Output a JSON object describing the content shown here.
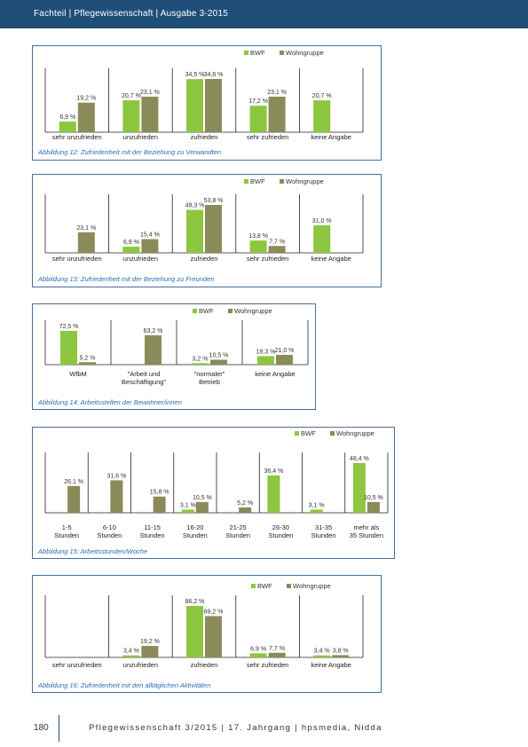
{
  "header": {
    "text": "Fachteil | Pflegewissenschaft | Ausgabe 3-2015"
  },
  "colors": {
    "bwf": "#8dc63f",
    "wohngruppe": "#8b8b5a",
    "frame": "#4a6f9a",
    "header": "#1f4e79",
    "caption": "#2b6cb0"
  },
  "chart_data": [
    {
      "type": "bar",
      "caption": "Abbildung 12: Zufriedenheit mit der Beziehung zu Verwandten",
      "categories": [
        "sehr unzufrieden",
        "unzufrieden",
        "zufrieden",
        "sehr zufrieden",
        "keine Angabe"
      ],
      "series": [
        {
          "name": "BWF",
          "values": [
            6.9,
            20.7,
            34.5,
            17.2,
            20.7
          ],
          "labels": [
            "6,9 %",
            "20,7 %",
            "34,5 %",
            "17,2 %",
            "20,7 %"
          ]
        },
        {
          "name": "Wohngruppe",
          "values": [
            19.2,
            23.1,
            34.6,
            23.1,
            null
          ],
          "labels": [
            "19,2 %",
            "23,1 %",
            "34,6 %",
            "23,1 %",
            ""
          ]
        }
      ]
    },
    {
      "type": "bar",
      "caption": "Abbildung 13: Zufriedenheit mit der Beziehung zu Freunden",
      "categories": [
        "sehr unzufrieden",
        "unzufrieden",
        "zufrieden",
        "sehr zufrieden",
        "keine Angabe"
      ],
      "series": [
        {
          "name": "BWF",
          "values": [
            null,
            6.9,
            48.3,
            13.8,
            31.0
          ],
          "labels": [
            "",
            "6,9 %",
            "48,3 %",
            "13,8 %",
            "31,0 %"
          ]
        },
        {
          "name": "Wohngruppe",
          "values": [
            23.1,
            15.4,
            53.8,
            7.7,
            null
          ],
          "labels": [
            "23,1 %",
            "15,4 %",
            "53,8 %",
            "7,7 %",
            ""
          ]
        }
      ]
    },
    {
      "type": "bar",
      "caption": "Abbildung 14: Arbeitsstellen der Bewohner/innen",
      "categories": [
        "WfbM",
        "\"Arbeit und Beschäftigung\"",
        "\"normaler\" Betrieb",
        "keine Angabe"
      ],
      "category_lines": [
        [
          "WfbM"
        ],
        [
          "\"Arbeit und",
          "Beschäftigung\""
        ],
        [
          "\"normaler\"",
          "Betrieb"
        ],
        [
          "keine Angabe"
        ]
      ],
      "series": [
        {
          "name": "BWF",
          "values": [
            72.5,
            null,
            3.2,
            18.3
          ],
          "labels": [
            "72,5 %",
            "",
            "3,2 %",
            "18,3 %"
          ]
        },
        {
          "name": "Wohngruppe",
          "values": [
            5.2,
            63.2,
            10.5,
            21.0
          ],
          "labels": [
            "5,2 %",
            "63,2 %",
            "10,5 %",
            "21,0 %"
          ]
        }
      ]
    },
    {
      "type": "bar",
      "caption": "Abbildung 15: Arbeitsstunden/Woche",
      "categories": [
        "1-5 Stunden",
        "6-10 Stunden",
        "11-15 Stunden",
        "16-20 Stunden",
        "21-25 Stunden",
        "26-30 Stunden",
        "31-35 Stunden",
        "mehr als 35 Stunden"
      ],
      "category_lines": [
        [
          "1-5",
          "Stunden"
        ],
        [
          "6-10",
          "Stunden"
        ],
        [
          "11-15",
          "Stunden"
        ],
        [
          "16-20",
          "Stunden"
        ],
        [
          "21-25",
          "Stunden"
        ],
        [
          "26-30",
          "Stunden"
        ],
        [
          "31-35",
          "Stunden"
        ],
        [
          "mehr als",
          "35 Stunden"
        ]
      ],
      "series": [
        {
          "name": "BWF",
          "values": [
            null,
            null,
            null,
            3.1,
            null,
            36.4,
            3.1,
            48.4
          ],
          "labels": [
            "",
            "",
            "",
            "3,1 %",
            "",
            "36,4 %",
            "3,1 %",
            "48,4 %"
          ]
        },
        {
          "name": "Wohngruppe",
          "values": [
            26.1,
            31.6,
            15.8,
            10.5,
            5.2,
            null,
            null,
            10.5
          ],
          "labels": [
            "26,1 %",
            "31,6 %",
            "15,8 %",
            "10,5 %",
            "5,2 %",
            "",
            "",
            "10,5 %"
          ]
        }
      ]
    },
    {
      "type": "bar",
      "caption": "Abbildung 16: Zufriedenheit mit den alltäglichen Aktivitäten",
      "categories": [
        "sehr unzufrieden",
        "unzufrieden",
        "zufrieden",
        "sehr zufrieden",
        "keine Angabe"
      ],
      "series": [
        {
          "name": "BWF",
          "values": [
            null,
            3.4,
            86.2,
            6.9,
            3.4
          ],
          "labels": [
            "",
            "3,4 %",
            "86,2 %",
            "6,9 %",
            "3,4 %"
          ]
        },
        {
          "name": "Wohngruppe",
          "values": [
            null,
            19.2,
            69.2,
            7.7,
            3.8
          ],
          "labels": [
            "",
            "19,2 %",
            "69,2 %",
            "7,7 %",
            "3,8 %"
          ]
        }
      ]
    }
  ],
  "footer": {
    "page_number": "180",
    "text": "Pflegewissenschaft 3/2015 | 17. Jahrgang | hpsmedia, Nidda"
  }
}
